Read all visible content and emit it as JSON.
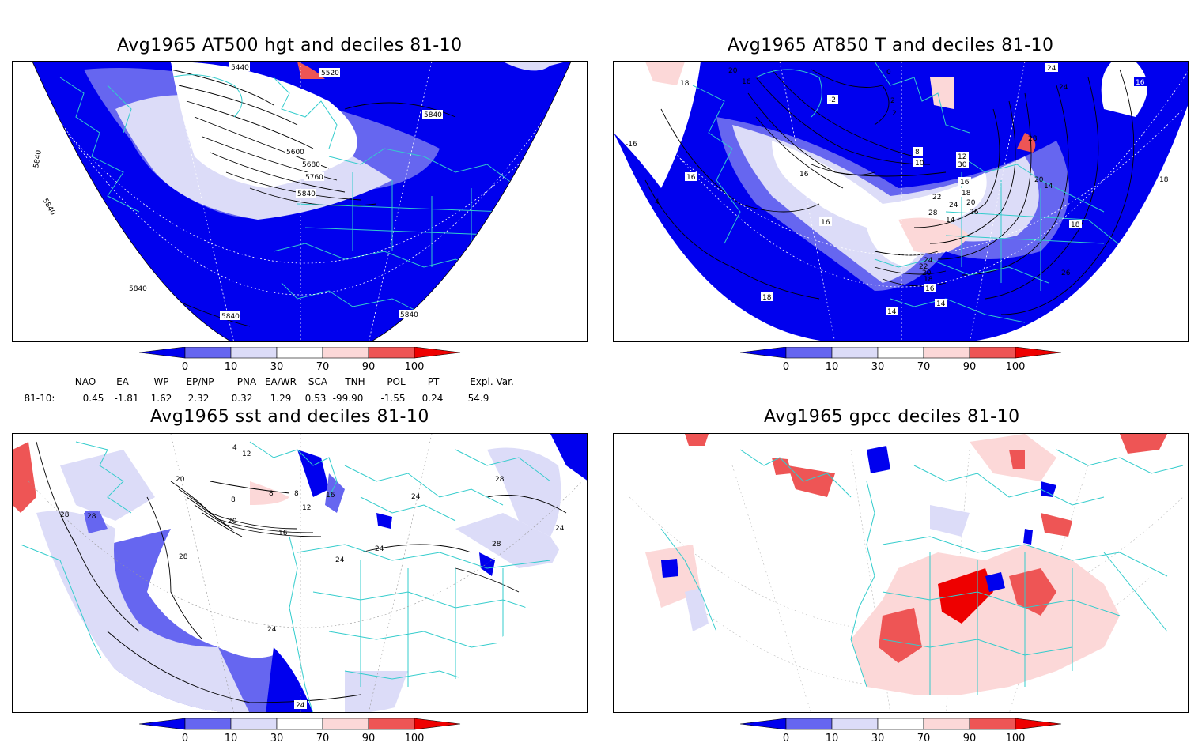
{
  "panels": {
    "p1": {
      "title": "Avg1965 AT500 hgt and deciles 81-10",
      "contour_labels": [
        "5440",
        "5520",
        "5840",
        "5600",
        "5680",
        "5760",
        "5840",
        "5840",
        "5840",
        "5840",
        "5840",
        "5840"
      ]
    },
    "p2": {
      "title": "Avg1965 AT850 T and deciles 81-10",
      "contour_labels": [
        "20",
        "18",
        "16",
        "-2",
        "2",
        "0",
        "2",
        "24",
        "24",
        "16",
        "-16",
        "16",
        "16",
        "4",
        "8",
        "10",
        "12",
        "30",
        "28",
        "20",
        "14",
        "16",
        "18",
        "20",
        "22",
        "24",
        "26",
        "28",
        "14",
        "16",
        "18",
        "14",
        "14",
        "18",
        "18",
        "26",
        "24",
        "22",
        "20",
        "18",
        "16"
      ]
    },
    "p3": {
      "title": "Avg1965 sst and deciles 81-10",
      "contour_labels": [
        "28",
        "20",
        "28",
        "4",
        "12",
        "8",
        "8",
        "8",
        "12",
        "20",
        "16",
        "16",
        "24",
        "24",
        "24",
        "28",
        "28",
        "28",
        "24",
        "24",
        "24"
      ]
    },
    "p4": {
      "title": "Avg1965 gpcc deciles 81-10"
    }
  },
  "colorbar": {
    "ticks": [
      "0",
      "10",
      "30",
      "70",
      "90",
      "100"
    ],
    "colors": [
      "#0000ee",
      "#6666f0",
      "#dcdcf8",
      "#ffffff",
      "#fcd8d8",
      "#ee5555",
      "#ee0000"
    ]
  },
  "indices": {
    "headers": [
      "NAO",
      "EA",
      "WP",
      "EP/NP",
      "PNA",
      "EA/WR",
      "SCA",
      "TNH",
      "POL",
      "PT",
      "Expl. Var."
    ],
    "row_label": "81-10:",
    "values": [
      "0.45",
      "-1.81",
      "1.62",
      "2.32",
      "0.32",
      "1.29",
      "0.53",
      "-99.90",
      "-1.55",
      "0.24",
      "54.9"
    ]
  },
  "colors": {
    "coast": "#33cccc",
    "land_neg": "#0000ee"
  }
}
